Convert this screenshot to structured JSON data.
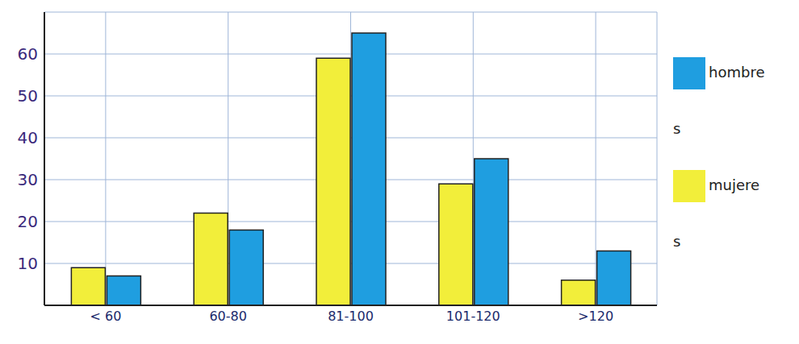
{
  "chart_data": {
    "type": "bar",
    "categories": [
      "< 60",
      "60-80",
      "81-100",
      "101-120",
      ">120"
    ],
    "series": [
      {
        "name": "mujeres",
        "color": "#f2ee3a",
        "values": [
          9,
          22,
          59,
          29,
          6
        ]
      },
      {
        "name": "hombres",
        "color": "#1f9ee0",
        "values": [
          7,
          18,
          65,
          35,
          13
        ]
      }
    ],
    "ylim": [
      0,
      70
    ],
    "yticks": [
      10,
      20,
      30,
      40,
      50,
      60
    ],
    "grid": true,
    "legend": "right"
  }
}
